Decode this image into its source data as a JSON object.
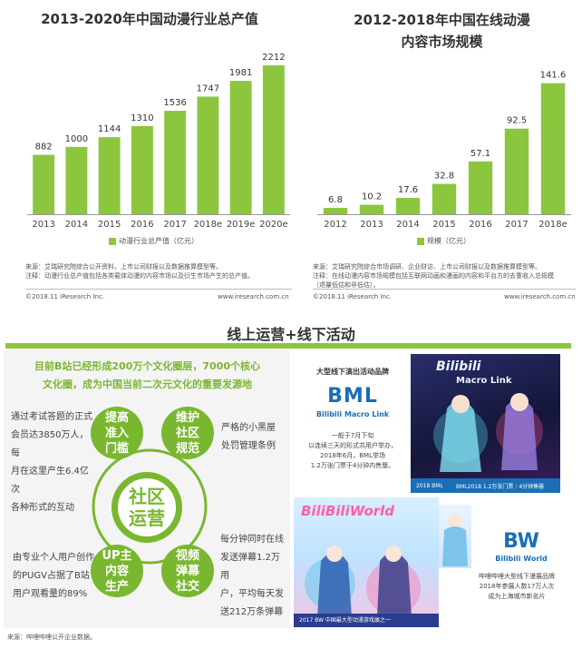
{
  "chart_data": [
    {
      "type": "bar",
      "title": "2013-2020年中国动漫行业总产值",
      "categories": [
        "2013",
        "2014",
        "2015",
        "2016",
        "2017",
        "2018e",
        "2019e",
        "2020e"
      ],
      "values": [
        882,
        1000,
        1144,
        1310,
        1536,
        1747,
        1981,
        2212
      ],
      "series": [
        {
          "name": "动漫行业总产值（亿元）",
          "values": [
            882,
            1000,
            1144,
            1310,
            1536,
            1747,
            1981,
            2212
          ]
        }
      ],
      "ylim": [
        0,
        2400
      ],
      "grid": false,
      "legend": "bottom"
    },
    {
      "type": "bar",
      "title": "2012-2018年中国在线动漫内容市场规模",
      "categories": [
        "2012",
        "2013",
        "2014",
        "2015",
        "2016",
        "2017",
        "2018e"
      ],
      "values": [
        6.8,
        10.2,
        17.6,
        32.8,
        57.1,
        92.5,
        141.6
      ],
      "series": [
        {
          "name": "规模（亿元）",
          "values": [
            6.8,
            10.2,
            17.6,
            32.8,
            57.1,
            92.5,
            141.6
          ]
        }
      ],
      "ylim": [
        0,
        155
      ],
      "grid": false,
      "legend": "bottom"
    }
  ],
  "chart1": {
    "title": "2013-2020年中国动漫行业总产值",
    "legend": "动漫行业总产值（亿元）",
    "source1": "来源：艾瑞研究院综合公开资料，上市公司财报以及数据推算模型等。",
    "source2": "注释：动漫行业总产值包括各类载体动漫的内容市场以及衍生市场产生的总产值。",
    "copyright": "©2018.11 iResearch Inc.",
    "website": "www.iresearch.com.cn"
  },
  "chart2": {
    "title_line1": "2012-2018年中国在线动漫",
    "title_line2": "内容市场规模",
    "legend": "规模（亿元）",
    "source1": "来源：艾瑞研究院综合市场调研、企业财访、上市公司财报以及数据推算模型等。",
    "source2": "注释：在线动漫内容市场规模包括互联网动画和漫画的内容和平台方的去重收入总规模",
    "source3": "（退量低估和非低估）。",
    "copyright": "©2018.11 iResearch Inc.",
    "website": "www.iresearch.com.cn"
  },
  "section": {
    "title": "线上运营+线下活动"
  },
  "community": {
    "headline1": "目前B站已经形成200万个文化圈层，7000个核心",
    "headline2": "文化圈，成为中国当前二次元文化的重要发源地",
    "center1": "社区",
    "center2": "运营",
    "circles": [
      {
        "line1": "提高",
        "line2": "准入",
        "line3": "门槛"
      },
      {
        "line1": "维护",
        "line2": "社区",
        "line3": "规范"
      },
      {
        "line1": "UP主",
        "line2": "内容",
        "line3": "生产"
      },
      {
        "line1": "视频",
        "line2": "弹幕",
        "line3": "社交"
      }
    ],
    "left_top": [
      "通过考试答题的正式",
      "会员达3850万人，每",
      "月在这里产生6.4亿次",
      "各种形式的互动"
    ],
    "right_top": [
      "严格的小黑屋",
      "处罚管理条例"
    ],
    "left_bottom": [
      "由专业个人用户创作",
      "的PUGV占据了B站",
      "用户观看量的89%"
    ],
    "right_bottom": [
      "每分钟同时在线",
      "发送弹幕1.2万用",
      "户，平均每天发",
      "送212万条弹幕"
    ]
  },
  "events": {
    "header": "大型线下演出活动品牌",
    "bml_logo": "BML",
    "bml_name": "Bilibili Macro Link",
    "bml_desc": [
      "一般于7月下旬",
      "以连续三天的形式共用户举办，",
      "2018年6月，BML举场",
      "1.2万张门票于4分钟内售罄。"
    ],
    "poster1_title": "Bilibili",
    "poster1_sub": "Macro Link",
    "poster1_caption": "2018 BML",
    "poster1_banner": "BML2018 1.2万张门票｜4分钟售罄",
    "bw_logo": "BW",
    "bw_name": "Bilibili World",
    "bw_desc": [
      "哔哩哔哩大型线下漫展品牌",
      "2018年参展人数17万人次",
      "成为上海城市新名片"
    ],
    "poster2_title": "BiliBiliWorld",
    "poster2_banner": "2017 BW 中国最大型动漫游戏展之一"
  },
  "footer": {
    "source": "来源：哔哩哔哩公开企业数据。"
  },
  "colors": {
    "accent": "#8cc63f",
    "circle": "#7ab730",
    "bml_blue": "#1a6fb5",
    "poster_dark": "#1c1f44"
  }
}
